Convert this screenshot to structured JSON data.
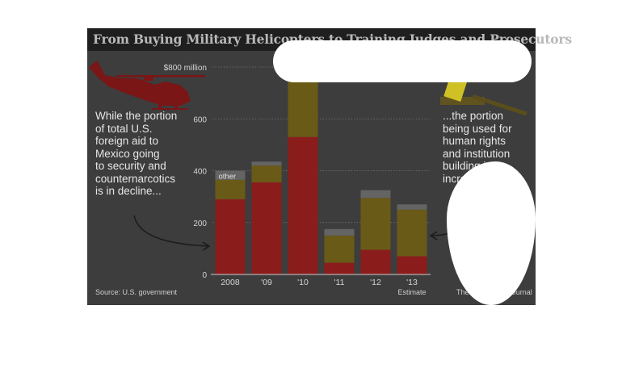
{
  "title": "From Buying Military Helicopters to Training Judges and Prosecutors",
  "annotations": {
    "left": [
      "While the portion",
      "of total U.S.",
      "foreign aid to",
      "Mexico going",
      "to security and",
      "counternarcotics",
      "is in decline..."
    ],
    "right": [
      "...the portion",
      "being used for",
      "human rights",
      "and institution",
      "building is",
      "increasing."
    ]
  },
  "source": "Source: U.S. government",
  "credit": "The Wall Street Journal",
  "icons": [
    "helicopter-icon",
    "gavel-icon"
  ],
  "colors": {
    "security": "#8b1c1c",
    "human_rights": "#6a5a18",
    "other": "#646464",
    "background": "#3d3d3d",
    "title_bar": "#1f1f1f"
  },
  "chart_data": {
    "type": "bar",
    "stacked": true,
    "categories": [
      "2008",
      "'09",
      "'10",
      "'11",
      "'12",
      "'13"
    ],
    "category_notes": [
      "",
      "",
      "",
      "",
      "",
      "Estimate"
    ],
    "series": [
      {
        "key": "security",
        "values": [
          290,
          355,
          530,
          45,
          95,
          70
        ]
      },
      {
        "key": "human_rights",
        "values": [
          75,
          65,
          220,
          105,
          200,
          180
        ]
      },
      {
        "name": "other",
        "key": "other",
        "values": [
          35,
          15,
          25,
          25,
          30,
          20
        ]
      }
    ],
    "ylim": [
      0,
      800
    ],
    "yticks": [
      0,
      200,
      400,
      600,
      800
    ],
    "ytick_labels": [
      "0",
      "200",
      "400",
      "600",
      "$800 million"
    ],
    "grid": true
  }
}
